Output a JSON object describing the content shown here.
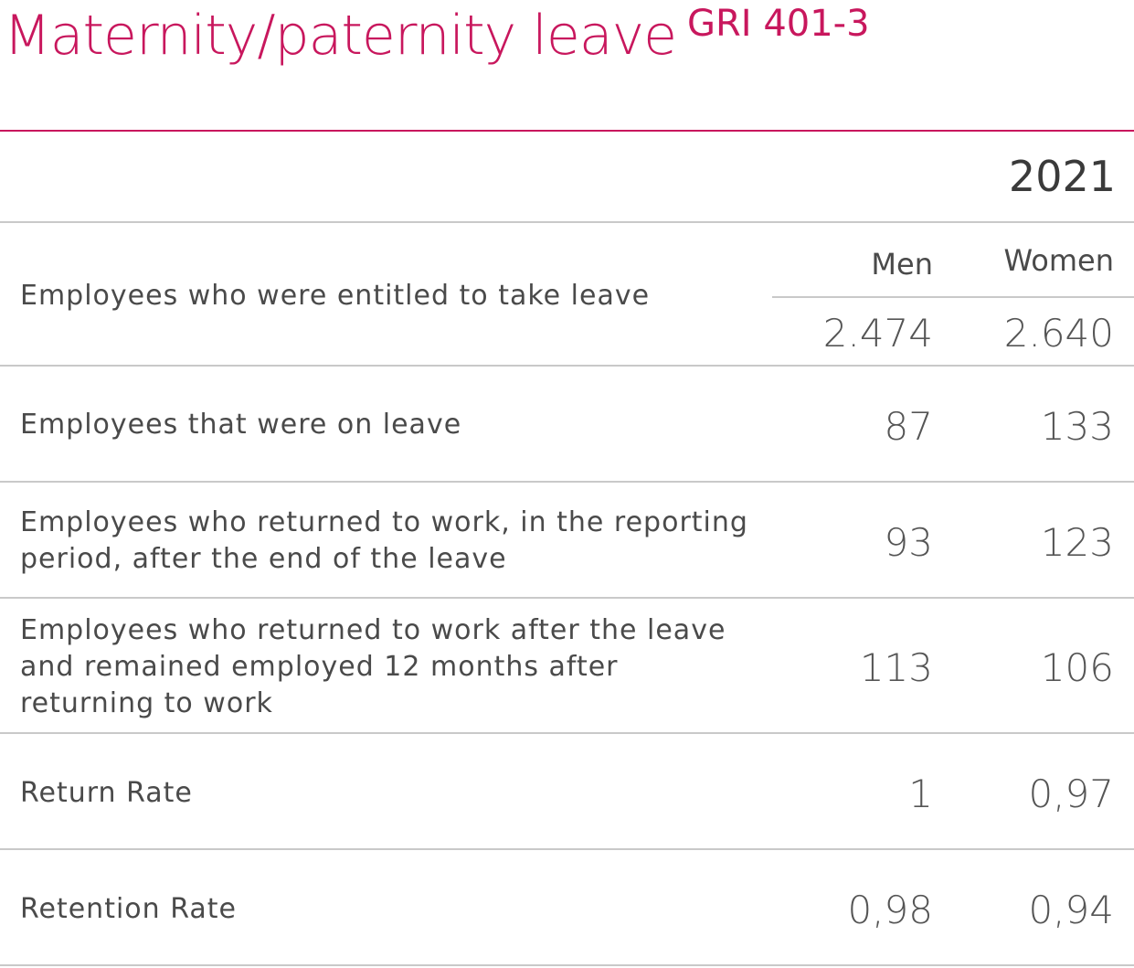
{
  "title": "Maternity/paternity leave",
  "title_code": "GRI 401-3",
  "year": "2021",
  "columns": {
    "men": "Men",
    "women": "Women"
  },
  "rows": [
    {
      "label": "Employees who were entitled to take leave",
      "men": "2.474",
      "women": "2.640"
    },
    {
      "label": "Employees that were on leave",
      "men": "87",
      "women": "133"
    },
    {
      "label": "Employees who returned to work, in the reporting period, after the end of the leave",
      "men": "93",
      "women": "123"
    },
    {
      "label": "Employees who returned to work after the leave and remained employed 12 months after returning to work",
      "men": "113",
      "women": "106"
    },
    {
      "label": "Return Rate",
      "men": "1",
      "women": "0,97"
    },
    {
      "label": "Retention Rate",
      "men": "0,98",
      "women": "0,94"
    }
  ],
  "colors": {
    "accent": "#c8175d",
    "rule": "#c9c9c9",
    "text": "#4a4a4a"
  }
}
